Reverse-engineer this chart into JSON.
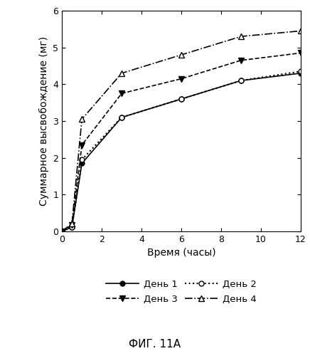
{
  "x": [
    0,
    0.5,
    1,
    3,
    6,
    9,
    12
  ],
  "day1": [
    0,
    0.12,
    1.85,
    3.1,
    3.6,
    4.1,
    4.3
  ],
  "day2": [
    0,
    0.12,
    1.95,
    3.1,
    3.6,
    4.1,
    4.35
  ],
  "day3": [
    0,
    0.18,
    2.35,
    3.75,
    4.15,
    4.65,
    4.85
  ],
  "day4": [
    0,
    0.22,
    3.05,
    4.3,
    4.8,
    5.3,
    5.45
  ],
  "xlabel": "Время (часы)",
  "ylabel": "Суммарное высвобождение (мг)",
  "legend_labels": [
    "День 1",
    "День 2",
    "День 3",
    "День 4"
  ],
  "fig_label": "ФИГ. 11А",
  "xlim": [
    0,
    12
  ],
  "ylim": [
    0,
    6
  ],
  "xticks": [
    0,
    2,
    4,
    6,
    8,
    10,
    12
  ],
  "yticks": [
    0,
    1,
    2,
    3,
    4,
    5,
    6
  ]
}
